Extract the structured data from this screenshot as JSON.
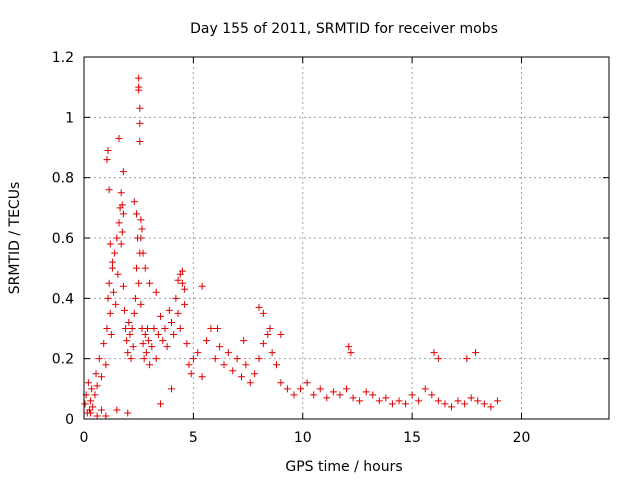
{
  "chart_data": {
    "type": "scatter",
    "title": "Day 155 of 2011, SRMTID for receiver mobs",
    "xlabel": "GPS time / hours",
    "ylabel": "SRMTID / TECUs",
    "xlim": [
      0,
      24
    ],
    "ylim": [
      0,
      1.2
    ],
    "xticks": [
      0,
      5,
      10,
      15,
      20
    ],
    "yticks": [
      0,
      0.2,
      0.4,
      0.6,
      0.8,
      1,
      1.2
    ],
    "xtick_labels": [
      "0",
      "5",
      "10",
      "15",
      "20"
    ],
    "ytick_labels": [
      "0",
      "0.2",
      "0.4",
      "0.6",
      "0.8",
      "1",
      "1.2"
    ],
    "grid": true,
    "marker": "plus",
    "color": "#e00000",
    "series": [
      {
        "name": "mobs",
        "x": [
          0.05,
          0.1,
          0.15,
          0.2,
          0.25,
          0.3,
          0.35,
          0.4,
          0.5,
          0.55,
          0.6,
          0.7,
          0.8,
          0.9,
          1.0,
          1.05,
          1.1,
          1.15,
          1.2,
          1.25,
          1.3,
          1.35,
          1.4,
          1.45,
          1.5,
          1.55,
          1.6,
          1.65,
          1.7,
          1.75,
          1.8,
          1.85,
          1.9,
          1.95,
          2.0,
          2.05,
          2.1,
          2.15,
          2.2,
          2.25,
          2.3,
          2.35,
          2.4,
          2.45,
          2.5,
          2.55,
          2.6,
          2.65,
          2.7,
          2.75,
          2.8,
          2.85,
          2.9,
          2.95,
          3.0,
          3.1,
          3.2,
          3.3,
          3.4,
          3.5,
          3.6,
          3.7,
          3.8,
          3.9,
          4.0,
          4.1,
          4.2,
          4.3,
          4.4,
          4.5,
          4.6,
          4.7,
          4.8,
          4.9,
          5.0,
          5.2,
          5.4,
          5.6,
          5.8,
          6.0,
          6.2,
          6.4,
          6.6,
          6.8,
          7.0,
          7.2,
          7.4,
          7.6,
          7.8,
          8.0,
          8.2,
          8.4,
          8.6,
          8.8,
          9.0,
          9.3,
          9.6,
          9.9,
          10.2,
          10.5,
          10.8,
          11.1,
          11.4,
          11.7,
          12.0,
          12.3,
          12.6,
          12.9,
          13.2,
          13.5,
          13.8,
          14.1,
          14.4,
          14.7,
          15.0,
          15.3,
          15.6,
          15.9,
          16.2,
          16.5,
          16.8,
          17.1,
          17.4,
          17.7,
          18.0,
          18.3,
          18.6,
          18.9,
          1.05,
          1.1,
          1.15,
          1.7,
          1.75,
          1.8,
          2.5,
          2.5,
          2.5,
          2.55,
          2.55,
          2.55,
          2.6,
          2.65,
          2.6,
          1.8,
          1.6,
          1.2,
          1.3,
          2.3,
          2.4,
          2.7,
          2.8,
          3.0,
          3.3,
          4.3,
          4.4,
          4.5,
          4.6,
          0.3,
          0.6,
          0.8,
          1.0,
          1.5,
          2.0,
          3.5,
          4.0,
          5.4,
          6.1,
          7.3,
          8.0,
          8.2,
          8.5,
          9.0,
          12.1,
          12.2,
          16.0,
          16.2,
          17.5,
          17.9
        ],
        "y": [
          0.05,
          0.08,
          0.02,
          0.12,
          0.03,
          0.06,
          0.1,
          0.04,
          0.08,
          0.15,
          0.11,
          0.2,
          0.14,
          0.25,
          0.18,
          0.3,
          0.4,
          0.45,
          0.35,
          0.28,
          0.5,
          0.42,
          0.55,
          0.38,
          0.6,
          0.48,
          0.65,
          0.7,
          0.58,
          0.62,
          0.44,
          0.36,
          0.3,
          0.26,
          0.22,
          0.32,
          0.28,
          0.2,
          0.3,
          0.24,
          0.35,
          0.4,
          0.5,
          0.6,
          0.45,
          0.55,
          0.38,
          0.3,
          0.25,
          0.2,
          0.28,
          0.22,
          0.3,
          0.26,
          0.18,
          0.24,
          0.3,
          0.2,
          0.28,
          0.34,
          0.26,
          0.3,
          0.24,
          0.36,
          0.32,
          0.28,
          0.4,
          0.35,
          0.3,
          0.45,
          0.38,
          0.25,
          0.18,
          0.15,
          0.2,
          0.22,
          0.14,
          0.26,
          0.3,
          0.2,
          0.24,
          0.18,
          0.22,
          0.16,
          0.2,
          0.14,
          0.18,
          0.12,
          0.15,
          0.2,
          0.25,
          0.28,
          0.22,
          0.18,
          0.12,
          0.1,
          0.08,
          0.1,
          0.12,
          0.08,
          0.1,
          0.07,
          0.09,
          0.08,
          0.1,
          0.07,
          0.06,
          0.09,
          0.08,
          0.06,
          0.07,
          0.05,
          0.06,
          0.05,
          0.08,
          0.06,
          0.1,
          0.08,
          0.06,
          0.05,
          0.04,
          0.06,
          0.05,
          0.07,
          0.06,
          0.05,
          0.04,
          0.06,
          0.86,
          0.89,
          0.76,
          0.75,
          0.71,
          0.68,
          1.13,
          1.1,
          1.09,
          1.03,
          0.98,
          0.92,
          0.66,
          0.63,
          0.6,
          0.82,
          0.93,
          0.58,
          0.52,
          0.72,
          0.68,
          0.55,
          0.5,
          0.45,
          0.42,
          0.46,
          0.48,
          0.49,
          0.43,
          0.02,
          0.01,
          0.03,
          0.01,
          0.03,
          0.02,
          0.05,
          0.1,
          0.44,
          0.3,
          0.26,
          0.37,
          0.35,
          0.3,
          0.28,
          0.24,
          0.22,
          0.22,
          0.2,
          0.2,
          0.22
        ]
      }
    ]
  }
}
